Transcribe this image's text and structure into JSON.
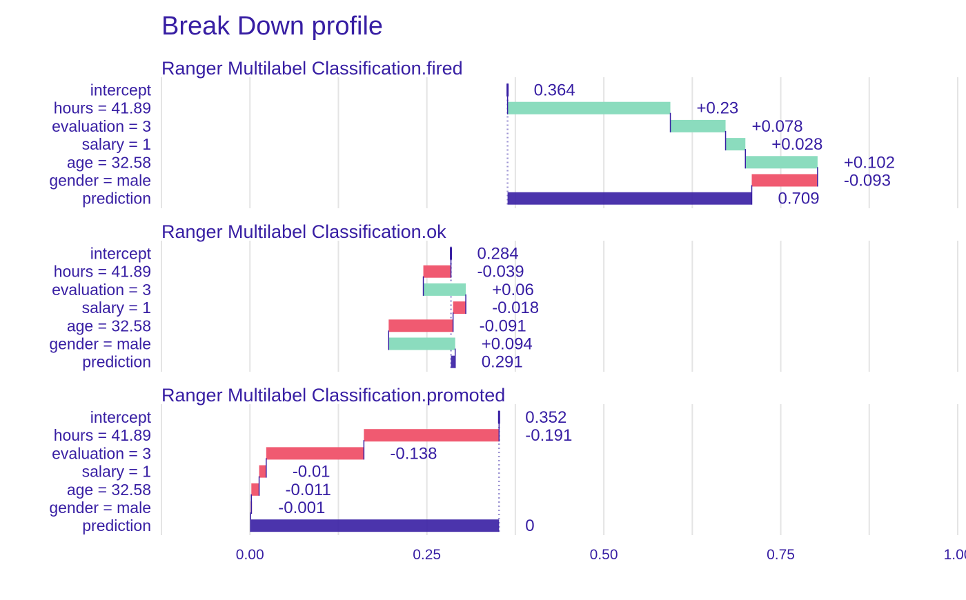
{
  "chart_data": {
    "type": "bar",
    "subtype": "break-down-waterfall",
    "title": "Break Down profile",
    "xlim": [
      -0.125,
      1.0
    ],
    "x_ticks": [
      0.0,
      0.25,
      0.5,
      0.75,
      1.0
    ],
    "x_tick_labels": [
      "0.00",
      "0.25",
      "0.50",
      "0.75",
      "1.00"
    ],
    "grid": true,
    "legend": "none",
    "colors": {
      "title": "#371ea3",
      "text": "#371ea3",
      "positive": "#8bdcbe",
      "negative": "#f05a71",
      "prediction": "#371ea3",
      "connector": "#371ea3",
      "grid": "#e4e4e4",
      "baseline": "#9c93d3"
    },
    "panels": [
      {
        "title": "Ranger Multilabel Classification.fired",
        "rows": [
          {
            "label": "intercept",
            "value": 0.364,
            "value_label": "0.364",
            "kind": "intercept"
          },
          {
            "label": "hours = 41.89",
            "value": 0.23,
            "value_label": "+0.23",
            "kind": "contribution"
          },
          {
            "label": "evaluation = 3",
            "value": 0.078,
            "value_label": "+0.078",
            "kind": "contribution"
          },
          {
            "label": "salary = 1",
            "value": 0.028,
            "value_label": "+0.028",
            "kind": "contribution"
          },
          {
            "label": "age = 32.58",
            "value": 0.102,
            "value_label": "+0.102",
            "kind": "contribution"
          },
          {
            "label": "gender = male",
            "value": -0.093,
            "value_label": "-0.093",
            "kind": "contribution"
          },
          {
            "label": "prediction",
            "value": 0.709,
            "value_label": "0.709",
            "kind": "prediction"
          }
        ]
      },
      {
        "title": "Ranger Multilabel Classification.ok",
        "rows": [
          {
            "label": "intercept",
            "value": 0.284,
            "value_label": "0.284",
            "kind": "intercept"
          },
          {
            "label": "hours = 41.89",
            "value": -0.039,
            "value_label": "-0.039",
            "kind": "contribution"
          },
          {
            "label": "evaluation = 3",
            "value": 0.06,
            "value_label": "+0.06",
            "kind": "contribution"
          },
          {
            "label": "salary = 1",
            "value": -0.018,
            "value_label": "-0.018",
            "kind": "contribution"
          },
          {
            "label": "age = 32.58",
            "value": -0.091,
            "value_label": "-0.091",
            "kind": "contribution"
          },
          {
            "label": "gender = male",
            "value": 0.094,
            "value_label": "+0.094",
            "kind": "contribution"
          },
          {
            "label": "prediction",
            "value": 0.291,
            "value_label": "0.291",
            "kind": "prediction"
          }
        ]
      },
      {
        "title": "Ranger Multilabel Classification.promoted",
        "rows": [
          {
            "label": "intercept",
            "value": 0.352,
            "value_label": "0.352",
            "kind": "intercept"
          },
          {
            "label": "hours = 41.89",
            "value": -0.191,
            "value_label": "-0.191",
            "kind": "contribution"
          },
          {
            "label": "evaluation = 3",
            "value": -0.138,
            "value_label": "-0.138",
            "kind": "contribution"
          },
          {
            "label": "salary = 1",
            "value": -0.01,
            "value_label": "-0.01",
            "kind": "contribution"
          },
          {
            "label": "age = 32.58",
            "value": -0.011,
            "value_label": "-0.011",
            "kind": "contribution"
          },
          {
            "label": "gender = male",
            "value": -0.001,
            "value_label": "-0.001",
            "kind": "contribution"
          },
          {
            "label": "prediction",
            "value": 0,
            "value_label": "0",
            "kind": "prediction"
          }
        ]
      }
    ]
  }
}
